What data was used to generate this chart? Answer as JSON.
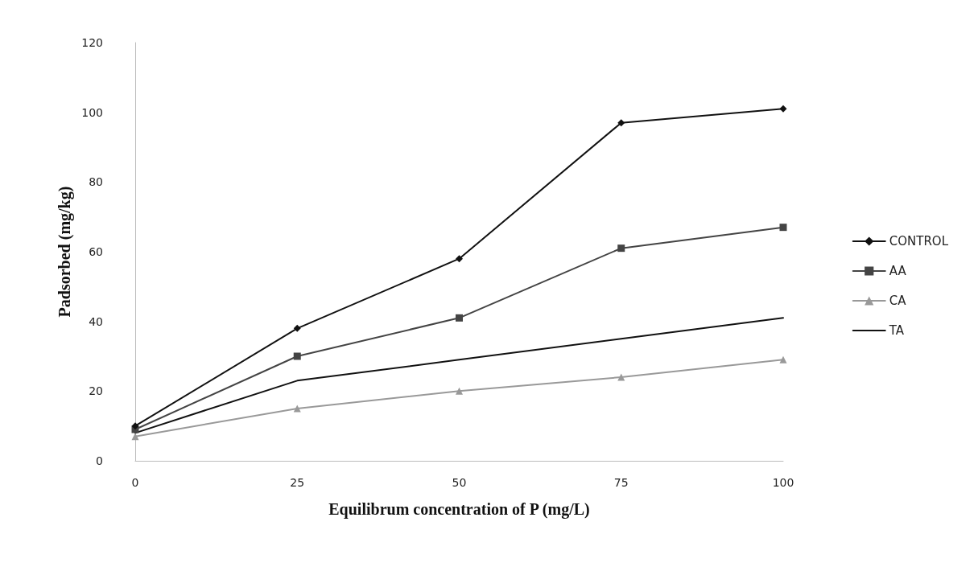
{
  "chart_data": {
    "type": "line",
    "xlabel": "Equilibrum concentration of P (mg/L)",
    "ylabel": "Padsorbed (mg/kg)",
    "x": [
      0,
      25,
      50,
      75,
      100
    ],
    "xlim": [
      0,
      100
    ],
    "xticks": [
      0,
      25,
      50,
      75,
      100
    ],
    "ylim": [
      0,
      120
    ],
    "yticks": [
      0,
      20,
      40,
      60,
      80,
      100,
      120
    ],
    "grid": false,
    "legend": "right",
    "line_style": "solid",
    "series": [
      {
        "name": "CONTROL",
        "color": "#111111",
        "marker": "diamond",
        "values": [
          10,
          38,
          58,
          97,
          101
        ]
      },
      {
        "name": "AA",
        "color": "#444444",
        "marker": "square",
        "values": [
          9,
          30,
          41,
          61,
          67
        ]
      },
      {
        "name": "CA",
        "color": "#999999",
        "marker": "triangle",
        "values": [
          7,
          15,
          20,
          24,
          29
        ]
      },
      {
        "name": "TA",
        "color": "#111111",
        "marker": "none",
        "values": [
          8,
          23,
          29,
          35,
          41
        ]
      }
    ]
  }
}
